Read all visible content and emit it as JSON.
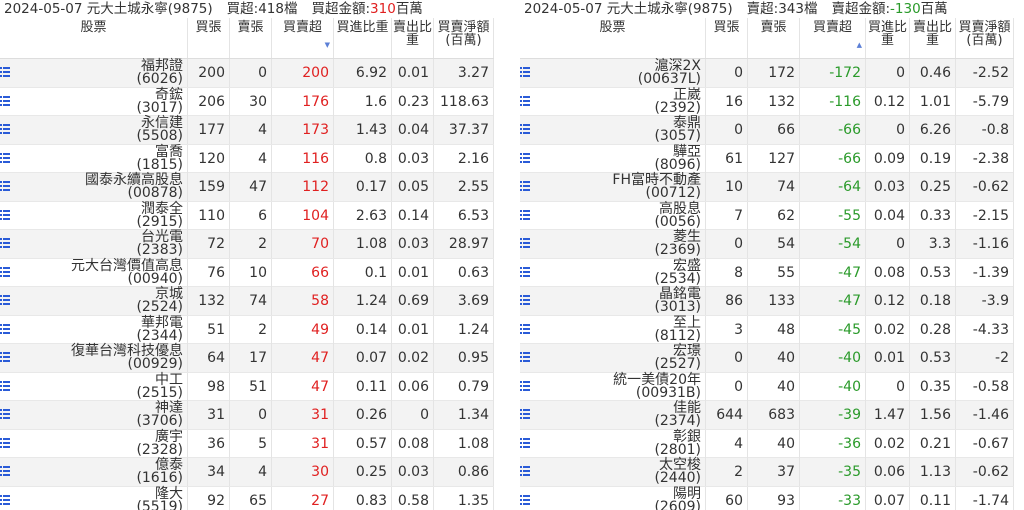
{
  "panels": [
    {
      "header": {
        "title": "2024-05-07 元大土城永寧(9875)",
        "count": "買超:418檔",
        "amount_label": "買超金額:",
        "amount": "310",
        "amount_unit": "百萬"
      },
      "columns": [
        "股票",
        "買張",
        "賣張",
        "買賣超",
        "買進比重",
        "賣出比重",
        "買賣淨額(百萬)"
      ],
      "rows": [
        [
          "福邦證",
          "(6026)",
          200,
          0,
          200,
          6.92,
          0.01,
          3.27
        ],
        [
          "奇鋐",
          "(3017)",
          206,
          30,
          176,
          1.6,
          0.23,
          118.63
        ],
        [
          "永信建",
          "(5508)",
          177,
          4,
          173,
          1.43,
          0.04,
          37.37
        ],
        [
          "富喬",
          "(1815)",
          120,
          4,
          116,
          0.8,
          0.03,
          2.16
        ],
        [
          "國泰永續高股息",
          "(00878)",
          159,
          47,
          112,
          0.17,
          0.05,
          2.55
        ],
        [
          "潤泰全",
          "(2915)",
          110,
          6,
          104,
          2.63,
          0.14,
          6.53
        ],
        [
          "台光電",
          "(2383)",
          72,
          2,
          70,
          1.08,
          0.03,
          28.97
        ],
        [
          "元大台灣價值高息",
          "(00940)",
          76,
          10,
          66,
          0.1,
          0.01,
          0.63
        ],
        [
          "京城",
          "(2524)",
          132,
          74,
          58,
          1.24,
          0.69,
          3.69
        ],
        [
          "華邦電",
          "(2344)",
          51,
          2,
          49,
          0.14,
          0.01,
          1.24
        ],
        [
          "復華台灣科技優息",
          "(00929)",
          64,
          17,
          47,
          0.07,
          0.02,
          0.95
        ],
        [
          "中工",
          "(2515)",
          98,
          51,
          47,
          0.11,
          0.06,
          0.79
        ],
        [
          "神達",
          "(3706)",
          31,
          0,
          31,
          0.26,
          0,
          1.34
        ],
        [
          "廣宇",
          "(2328)",
          36,
          5,
          31,
          0.57,
          0.08,
          1.08
        ],
        [
          "億泰",
          "(1616)",
          34,
          4,
          30,
          0.25,
          0.03,
          0.86
        ],
        [
          "隆大",
          "(5519)",
          92,
          65,
          27,
          0.83,
          0.58,
          1.35
        ]
      ]
    },
    {
      "header": {
        "title": "2024-05-07 元大土城永寧(9875)",
        "count": "賣超:343檔",
        "amount_label": "賣超金額:",
        "amount": "-130",
        "amount_unit": "百萬"
      },
      "columns": [
        "股票",
        "買張",
        "賣張",
        "買賣超",
        "買進比重",
        "賣出比重",
        "買賣淨額(百萬)"
      ],
      "rows": [
        [
          "滬深2X",
          "(00637L)",
          0,
          172,
          -172,
          0,
          0.46,
          -2.52
        ],
        [
          "正崴",
          "(2392)",
          16,
          132,
          -116,
          0.12,
          1.01,
          -5.79
        ],
        [
          "泰鼎",
          "(3057)",
          0,
          66,
          -66,
          0,
          6.26,
          -0.8
        ],
        [
          "驊亞",
          "(8096)",
          61,
          127,
          -66,
          0.09,
          0.19,
          -2.38
        ],
        [
          "FH富時不動產",
          "(00712)",
          10,
          74,
          -64,
          0.03,
          0.25,
          -0.62
        ],
        [
          "高股息",
          "(0056)",
          7,
          62,
          -55,
          0.04,
          0.33,
          -2.15
        ],
        [
          "菱生",
          "(2369)",
          0,
          54,
          -54,
          0,
          3.3,
          -1.16
        ],
        [
          "宏盛",
          "(2534)",
          8,
          55,
          -47,
          0.08,
          0.53,
          -1.39
        ],
        [
          "晶銘電",
          "(3013)",
          86,
          133,
          -47,
          0.12,
          0.18,
          -3.9
        ],
        [
          "至上",
          "(8112)",
          3,
          48,
          -45,
          0.02,
          0.28,
          -4.33
        ],
        [
          "宏璟",
          "(2527)",
          0,
          40,
          -40,
          0.01,
          0.53,
          -2
        ],
        [
          "統一美債20年",
          "(00931B)",
          0,
          40,
          -40,
          0,
          0.35,
          -0.58
        ],
        [
          "佳能",
          "(2374)",
          644,
          683,
          -39,
          1.47,
          1.56,
          -1.46
        ],
        [
          "彰銀",
          "(2801)",
          4,
          40,
          -36,
          0.02,
          0.21,
          -0.67
        ],
        [
          "太空梭",
          "(2440)",
          2,
          37,
          -35,
          0.06,
          1.13,
          -0.62
        ],
        [
          "陽明",
          "(2609)",
          60,
          93,
          -33,
          0.07,
          0.11,
          -1.74
        ]
      ]
    }
  ]
}
